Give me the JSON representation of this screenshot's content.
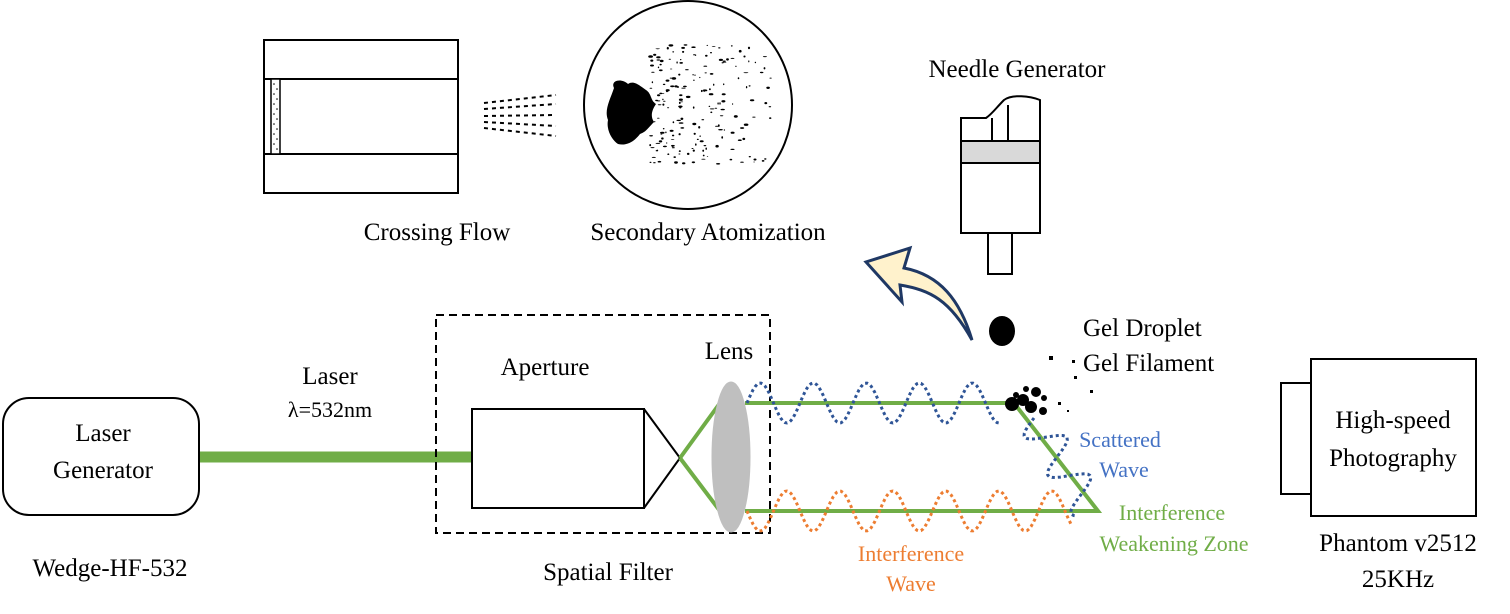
{
  "labels": {
    "crossing_flow": "Crossing Flow",
    "secondary_atomization": "Secondary Atomization",
    "needle_generator": "Needle Generator",
    "gel_droplet": "Gel Droplet",
    "gel_filament": "Gel Filament",
    "laser_generator_line1": "Laser",
    "laser_generator_line2": "Generator",
    "laser_generator_model": "Wedge-HF-532",
    "laser": "Laser",
    "wavelength": "λ=532nm",
    "aperture": "Aperture",
    "lens": "Lens",
    "spatial_filter": "Spatial Filter",
    "scattered_wave_line1": "Scattered",
    "scattered_wave_line2": "Wave",
    "interference_wave_line1": "Interference",
    "interference_wave_line2": "Wave",
    "interference_zone_line1": "Interference",
    "interference_zone_line2": "Weakening Zone",
    "camera_line1": "High-speed",
    "camera_line2": "Photography",
    "camera_model": "Phantom v2512",
    "camera_rate": "25KHz"
  },
  "colors": {
    "beam": "#70ad47",
    "scattered_wave": "#2f5597",
    "interference_wave": "#ed7d31",
    "scattered_text": "#4472c4",
    "interference_text": "#ed7d31",
    "zone_text": "#70ad47",
    "lens": "#bfbfbf",
    "arrow_fill": "#fff2cc",
    "arrow_stroke": "#1f3864",
    "piston": "#d9d9d9"
  }
}
